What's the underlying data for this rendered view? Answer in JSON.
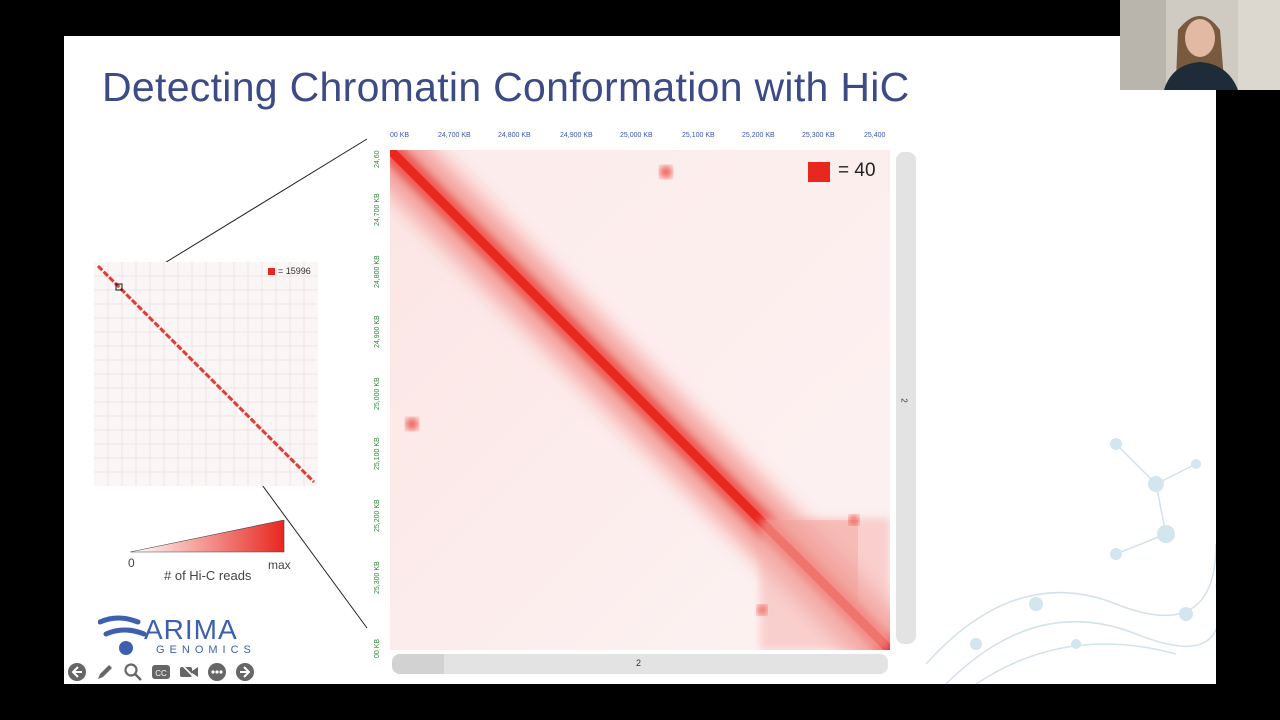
{
  "slide": {
    "title": "Detecting Chromatin Conformation with HiC"
  },
  "small_map": {
    "legend_value": "= 15996"
  },
  "main_map": {
    "legend_value": "= 40",
    "x_ticks": [
      "00 KB",
      "24,700 KB",
      "24,800 KB",
      "24,900 KB",
      "25,000 KB",
      "25,100 KB",
      "25,200 KB",
      "25,300 KB",
      "25,400"
    ],
    "y_ticks": [
      "24,60",
      "24,700 KB",
      "24,800 KB",
      "24,900 KB",
      "25,000 KB",
      "25,100 KB",
      "25,200 KB",
      "25,300 KB",
      "00 KB"
    ],
    "right_scroll_label": "2",
    "bottom_scroll_label": "2"
  },
  "scale_bar": {
    "min_label": "0",
    "max_label": "max",
    "caption": "# of Hi-C reads"
  },
  "logo": {
    "name": "ARIMA",
    "subtitle": "GENOMICS"
  },
  "controls": {
    "icons": [
      "back-icon",
      "pen-icon",
      "zoom-icon",
      "captions-icon",
      "video-off-icon",
      "more-icon",
      "forward-icon"
    ]
  },
  "colors": {
    "title": "#3c4a86",
    "heat": "#e8271f",
    "logo": "#3c5fb0"
  }
}
